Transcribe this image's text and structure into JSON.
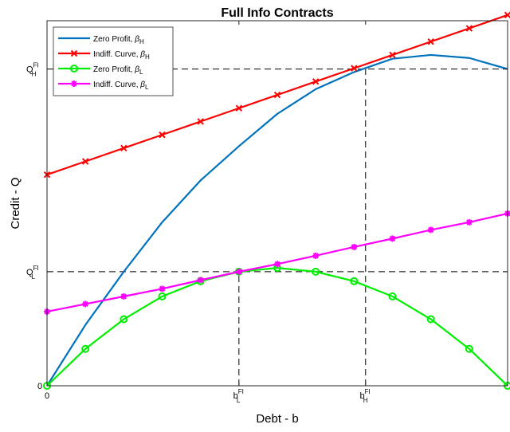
{
  "chart_data": {
    "type": "line",
    "title": "Full Info Contracts",
    "xlabel": "Debt - b",
    "ylabel": "Credit - Q",
    "xlim": [
      0,
      12
    ],
    "ylim": [
      0,
      9.6
    ],
    "grid": false,
    "legend_position": "top-left",
    "x_ticks": [
      {
        "value": 0,
        "label": "0",
        "sup": ""
      },
      {
        "value": 5,
        "label": "b",
        "sup": "FI",
        "sub": "L"
      },
      {
        "value": 8.3,
        "label": "b",
        "sup": "FI",
        "sub": "H"
      }
    ],
    "y_ticks": [
      {
        "value": 0,
        "label": "0",
        "sup": ""
      },
      {
        "value": 3,
        "label": "Q",
        "sup": "FI",
        "sub": "L"
      },
      {
        "value": 8.33,
        "label": "Q",
        "sup": "FI",
        "sub": "H"
      }
    ],
    "reference_lines": [
      {
        "orientation": "vertical",
        "x": 5,
        "y_from": 0,
        "y_to": 3
      },
      {
        "orientation": "horizontal",
        "y": 3,
        "x_from": 0,
        "x_to": 12
      },
      {
        "orientation": "vertical",
        "x": 8.3,
        "y_from": 0,
        "y_to": 8.33
      },
      {
        "orientation": "horizontal",
        "y": 8.33,
        "x_from": 0,
        "x_to": 12
      }
    ],
    "series": [
      {
        "name": "Zero Profit, ",
        "greek": "β",
        "sub": "H",
        "color": "#0072bd",
        "marker": "none",
        "x": [
          0,
          1,
          2,
          3,
          4,
          5,
          6,
          7,
          8,
          9,
          10,
          11,
          12
        ],
        "y": [
          0,
          1.6,
          3.0,
          4.3,
          5.4,
          6.3,
          7.15,
          7.8,
          8.25,
          8.6,
          8.7,
          8.62,
          8.33
        ]
      },
      {
        "name": "Indiff. Curve, ",
        "greek": "β",
        "sub": "H",
        "color": "#ff0000",
        "marker": "x",
        "x": [
          0,
          1,
          2,
          3,
          4,
          5,
          6,
          7,
          8,
          9,
          10,
          11,
          12
        ],
        "y": [
          5.55,
          5.9,
          6.25,
          6.6,
          6.95,
          7.3,
          7.65,
          8.0,
          8.35,
          8.7,
          9.05,
          9.4,
          9.75
        ]
      },
      {
        "name": "Zero Profit, ",
        "greek": "β",
        "sub": "L",
        "color": "#00ee00",
        "marker": "o",
        "x": [
          0,
          1,
          2,
          3,
          4,
          5,
          6,
          7,
          8,
          9,
          10,
          11,
          12
        ],
        "y": [
          0,
          0.97,
          1.75,
          2.35,
          2.75,
          3.0,
          3.1,
          3.0,
          2.75,
          2.35,
          1.75,
          0.97,
          0
        ]
      },
      {
        "name": "Indiff. Curve, ",
        "greek": "β",
        "sub": "L",
        "color": "#ff00ff",
        "marker": "*",
        "x": [
          0,
          1,
          2,
          3,
          4,
          5,
          6,
          7,
          8,
          9,
          10,
          11,
          12
        ],
        "y": [
          1.95,
          2.15,
          2.35,
          2.55,
          2.78,
          3.0,
          3.2,
          3.42,
          3.65,
          3.87,
          4.1,
          4.3,
          4.53
        ]
      }
    ]
  }
}
